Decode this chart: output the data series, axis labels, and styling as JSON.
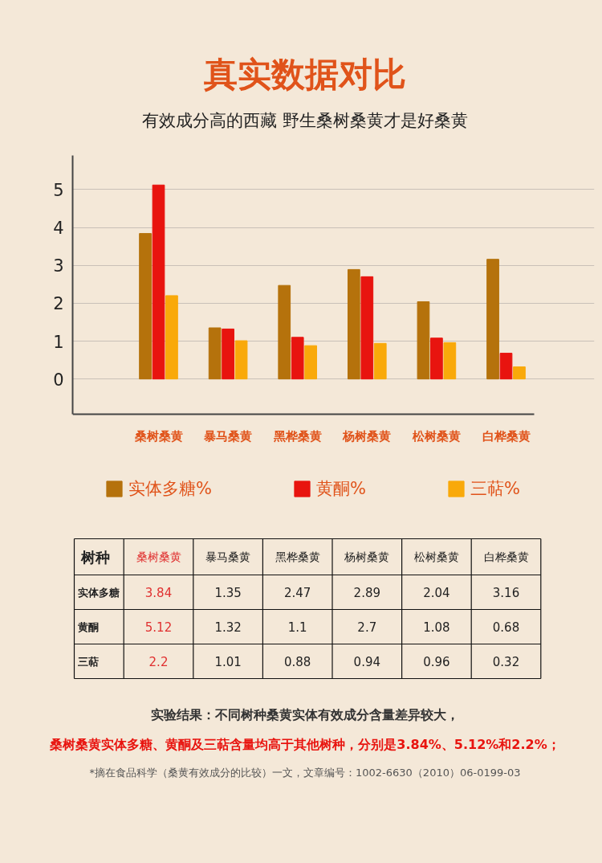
{
  "chart_data": {
    "type": "bar",
    "title": "真实数据对比",
    "subtitle": "有效成分高的西藏 野生桑树桑黄才是好桑黄",
    "categories": [
      "桑树桑黄",
      "暴马桑黄",
      "黑桦桑黄",
      "杨树桑黄",
      "松树桑黄",
      "白桦桑黄"
    ],
    "series": [
      {
        "name": "实体多糖%",
        "color": "#b5720c",
        "values": [
          3.84,
          1.35,
          2.47,
          2.89,
          2.04,
          3.16
        ]
      },
      {
        "name": "黄酮%",
        "color": "#e8140f",
        "values": [
          5.12,
          1.32,
          1.1,
          2.7,
          1.08,
          0.68
        ]
      },
      {
        "name": "三萜%",
        "color": "#f9a90a",
        "values": [
          2.2,
          1.01,
          0.88,
          0.94,
          0.96,
          0.32
        ]
      }
    ],
    "ylim": [
      -0.93,
      5.9
    ],
    "yticks": [
      0,
      1,
      2,
      3,
      4,
      5
    ],
    "grid": "y",
    "legend": "bottom",
    "data_labels": true,
    "annotations": [
      "树种",
      "实体多糖",
      "黄酮",
      "三萜",
      "实验结果：不同树种桑黄实体有效成分含量差异较大，",
      "桑树桑黄实体多糖、黄酮及三萜含量均高于其他树种，分别是3.84%、5.12%和2.2%；",
      "*摘在食品科学（桑黄有效成分的比较）一文，文章编号：1002-6630（2010）06-0199-03"
    ]
  }
}
